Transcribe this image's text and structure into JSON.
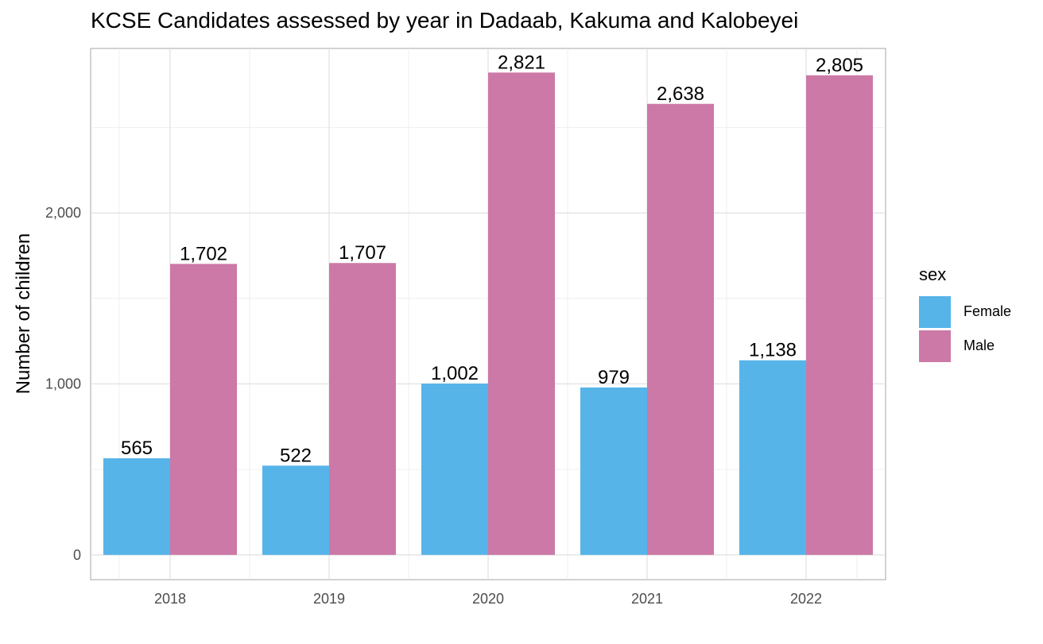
{
  "chart_data": {
    "type": "bar",
    "title": "KCSE Candidates assessed by year in Dadaab, Kakuma and Kalobeyei",
    "xlabel": "",
    "ylabel": "Number of children",
    "categories": [
      "2018",
      "2019",
      "2020",
      "2021",
      "2022"
    ],
    "series": [
      {
        "name": "Female",
        "color": "#56B4E9",
        "values": [
          565,
          522,
          1002,
          979,
          1138
        ],
        "labels": [
          "565",
          "522",
          "1,002",
          "979",
          "1,138"
        ]
      },
      {
        "name": "Male",
        "color": "#CC79A7",
        "values": [
          1702,
          1707,
          2821,
          2638,
          2805
        ],
        "labels": [
          "1,702",
          "1,707",
          "2,821",
          "2,638",
          "2,805"
        ]
      }
    ],
    "yticks": [
      0,
      1000,
      2000
    ],
    "ytick_labels": [
      "0",
      "1,000",
      "2,000"
    ],
    "ylim": [
      -145,
      2962
    ],
    "grid": true,
    "legend": {
      "title": "sex",
      "position": "right"
    }
  }
}
